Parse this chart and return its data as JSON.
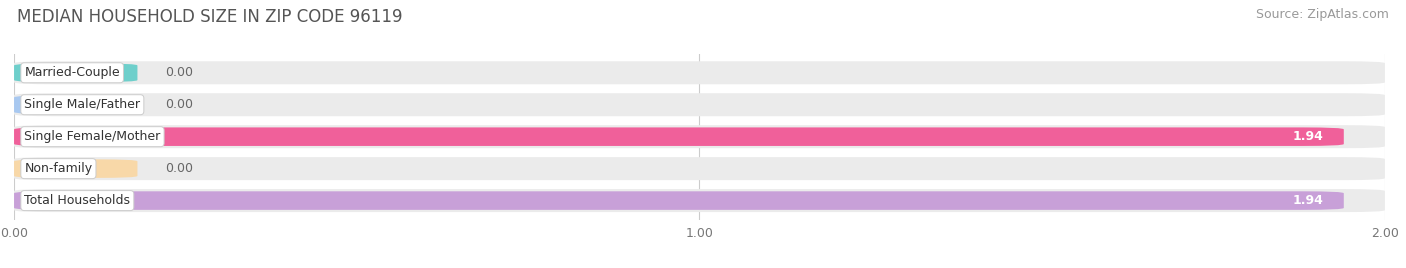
{
  "title": "MEDIAN HOUSEHOLD SIZE IN ZIP CODE 96119",
  "source": "Source: ZipAtlas.com",
  "categories": [
    "Married-Couple",
    "Single Male/Father",
    "Single Female/Mother",
    "Non-family",
    "Total Households"
  ],
  "values": [
    0.0,
    0.0,
    1.94,
    0.0,
    1.94
  ],
  "bar_colors": [
    "#6ecfcb",
    "#a8c8f0",
    "#f0609a",
    "#f8d8a8",
    "#c8a0d8"
  ],
  "xlim": [
    0,
    2.0
  ],
  "xticks": [
    0.0,
    1.0,
    2.0
  ],
  "xtick_labels": [
    "0.00",
    "1.00",
    "2.00"
  ],
  "title_fontsize": 12,
  "source_fontsize": 9,
  "category_fontsize": 9,
  "value_fontsize": 9,
  "background_color": "#ffffff",
  "bar_bg_color": "#ebebeb"
}
